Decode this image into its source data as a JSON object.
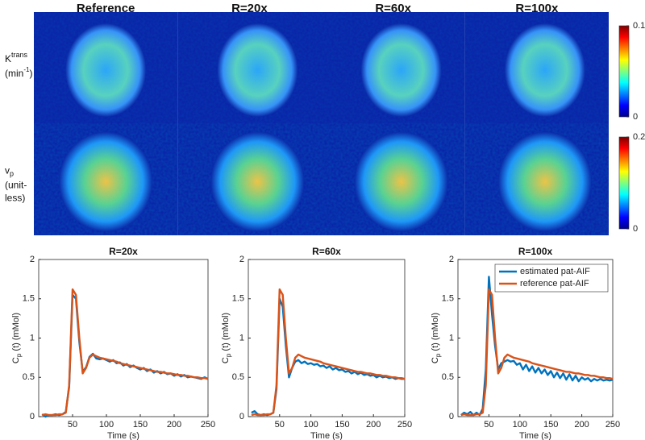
{
  "image_grid": {
    "columns": [
      "Reference",
      "R=20x",
      "R=60x",
      "R=100x"
    ],
    "rows": [
      {
        "label": [
          "K",
          "trans",
          "(min",
          "-1",
          ")"
        ],
        "clim": [
          0,
          0.1
        ],
        "ticks": [
          0,
          0.1
        ]
      },
      {
        "label": [
          "v",
          "p",
          "(unit-",
          "less)"
        ],
        "clim": [
          0,
          0.2
        ],
        "ticks": [
          0,
          0.2
        ]
      }
    ]
  },
  "chart_data": [
    {
      "type": "line",
      "title": "R=20x",
      "xlabel": "Time (s)",
      "ylabel": [
        "C",
        "p",
        " (t) (mMol)"
      ],
      "xlim": [
        0,
        250
      ],
      "xticks": [
        50,
        100,
        150,
        200,
        250
      ],
      "ylim": [
        0,
        2
      ],
      "yticks": [
        0,
        0.5,
        1,
        1.5,
        2
      ],
      "x": [
        5,
        10,
        15,
        20,
        25,
        30,
        35,
        40,
        45,
        50,
        55,
        60,
        65,
        70,
        75,
        80,
        85,
        90,
        95,
        100,
        105,
        110,
        115,
        120,
        125,
        130,
        135,
        140,
        145,
        150,
        155,
        160,
        165,
        170,
        175,
        180,
        185,
        190,
        195,
        200,
        205,
        210,
        215,
        220,
        225,
        230,
        235,
        240,
        245,
        250
      ],
      "series": [
        {
          "color": "#0072bd",
          "values": [
            0.03,
            0.0,
            0.02,
            0.02,
            0.03,
            0.02,
            0.03,
            0.06,
            0.38,
            1.55,
            1.5,
            0.95,
            0.57,
            0.63,
            0.76,
            0.8,
            0.74,
            0.73,
            0.74,
            0.72,
            0.7,
            0.72,
            0.68,
            0.69,
            0.65,
            0.67,
            0.63,
            0.65,
            0.62,
            0.6,
            0.62,
            0.58,
            0.6,
            0.56,
            0.58,
            0.55,
            0.57,
            0.54,
            0.55,
            0.52,
            0.54,
            0.51,
            0.53,
            0.5,
            0.51,
            0.5,
            0.49,
            0.48,
            0.5,
            0.48
          ]
        },
        {
          "color": "#d95319",
          "values": [
            0.02,
            0.03,
            0.02,
            0.02,
            0.02,
            0.03,
            0.03,
            0.05,
            0.4,
            1.62,
            1.55,
            1.0,
            0.55,
            0.62,
            0.75,
            0.79,
            0.77,
            0.75,
            0.74,
            0.73,
            0.72,
            0.71,
            0.7,
            0.68,
            0.67,
            0.66,
            0.65,
            0.64,
            0.63,
            0.62,
            0.61,
            0.6,
            0.59,
            0.58,
            0.57,
            0.57,
            0.56,
            0.55,
            0.55,
            0.54,
            0.53,
            0.53,
            0.52,
            0.52,
            0.51,
            0.5,
            0.5,
            0.49,
            0.49,
            0.48
          ]
        }
      ]
    },
    {
      "type": "line",
      "title": "R=60x",
      "xlabel": "Time (s)",
      "ylabel": [
        "C",
        "p",
        " (t) (mMol)"
      ],
      "xlim": [
        0,
        250
      ],
      "xticks": [
        50,
        100,
        150,
        200,
        250
      ],
      "ylim": [
        0,
        2
      ],
      "yticks": [
        0,
        0.5,
        1,
        1.5,
        2
      ],
      "x": [
        5,
        10,
        15,
        20,
        25,
        30,
        35,
        40,
        45,
        50,
        55,
        60,
        65,
        70,
        75,
        80,
        85,
        90,
        95,
        100,
        105,
        110,
        115,
        120,
        125,
        130,
        135,
        140,
        145,
        150,
        155,
        160,
        165,
        170,
        175,
        180,
        185,
        190,
        195,
        200,
        205,
        210,
        215,
        220,
        225,
        230,
        235,
        240,
        245,
        250
      ],
      "series": [
        {
          "color": "#0072bd",
          "values": [
            0.05,
            0.07,
            0.03,
            0.02,
            0.03,
            0.02,
            0.03,
            0.05,
            0.35,
            1.5,
            1.4,
            0.9,
            0.5,
            0.62,
            0.7,
            0.72,
            0.68,
            0.7,
            0.67,
            0.68,
            0.66,
            0.67,
            0.64,
            0.65,
            0.62,
            0.64,
            0.6,
            0.62,
            0.59,
            0.6,
            0.57,
            0.58,
            0.55,
            0.57,
            0.54,
            0.56,
            0.53,
            0.54,
            0.52,
            0.53,
            0.5,
            0.52,
            0.5,
            0.51,
            0.49,
            0.5,
            0.48,
            0.49,
            0.48,
            0.48
          ]
        },
        {
          "color": "#d95319",
          "values": [
            0.02,
            0.03,
            0.02,
            0.02,
            0.02,
            0.03,
            0.03,
            0.05,
            0.4,
            1.62,
            1.55,
            1.0,
            0.55,
            0.62,
            0.75,
            0.79,
            0.77,
            0.75,
            0.74,
            0.73,
            0.72,
            0.71,
            0.7,
            0.68,
            0.67,
            0.66,
            0.65,
            0.64,
            0.63,
            0.62,
            0.61,
            0.6,
            0.59,
            0.58,
            0.57,
            0.57,
            0.56,
            0.55,
            0.55,
            0.54,
            0.53,
            0.53,
            0.52,
            0.52,
            0.51,
            0.5,
            0.5,
            0.49,
            0.49,
            0.48
          ]
        }
      ]
    },
    {
      "type": "line",
      "title": "R=100x",
      "xlabel": "Time (s)",
      "ylabel": [
        "C",
        "p",
        " (t) (mMol)"
      ],
      "xlim": [
        0,
        250
      ],
      "xticks": [
        50,
        100,
        150,
        200,
        250
      ],
      "ylim": [
        0,
        2
      ],
      "yticks": [
        0,
        0.5,
        1,
        1.5,
        2
      ],
      "legend": "northeast",
      "x": [
        5,
        10,
        15,
        20,
        25,
        30,
        35,
        40,
        45,
        50,
        55,
        60,
        65,
        70,
        75,
        80,
        85,
        90,
        95,
        100,
        105,
        110,
        115,
        120,
        125,
        130,
        135,
        140,
        145,
        150,
        155,
        160,
        165,
        170,
        175,
        180,
        185,
        190,
        195,
        200,
        205,
        210,
        215,
        220,
        225,
        230,
        235,
        240,
        245,
        250
      ],
      "series": [
        {
          "name": "estimated pat-AIF",
          "color": "#0072bd",
          "values": [
            0.02,
            0.05,
            0.03,
            0.06,
            0.02,
            0.05,
            0.02,
            0.1,
            0.6,
            1.78,
            1.3,
            0.9,
            0.6,
            0.68,
            0.7,
            0.72,
            0.7,
            0.71,
            0.66,
            0.68,
            0.6,
            0.66,
            0.58,
            0.64,
            0.56,
            0.62,
            0.55,
            0.6,
            0.53,
            0.58,
            0.5,
            0.56,
            0.49,
            0.55,
            0.47,
            0.54,
            0.46,
            0.52,
            0.45,
            0.5,
            0.47,
            0.49,
            0.45,
            0.48,
            0.46,
            0.48,
            0.46,
            0.47,
            0.46,
            0.47
          ]
        },
        {
          "name": "reference pat-AIF",
          "color": "#d95319",
          "values": [
            0.02,
            0.03,
            0.02,
            0.02,
            0.02,
            0.03,
            0.03,
            0.05,
            0.4,
            1.62,
            1.55,
            1.0,
            0.55,
            0.62,
            0.75,
            0.79,
            0.77,
            0.75,
            0.74,
            0.73,
            0.72,
            0.71,
            0.7,
            0.68,
            0.67,
            0.66,
            0.65,
            0.64,
            0.63,
            0.62,
            0.61,
            0.6,
            0.59,
            0.58,
            0.57,
            0.57,
            0.56,
            0.55,
            0.55,
            0.54,
            0.53,
            0.53,
            0.52,
            0.52,
            0.51,
            0.5,
            0.5,
            0.49,
            0.49,
            0.48
          ]
        }
      ]
    }
  ]
}
